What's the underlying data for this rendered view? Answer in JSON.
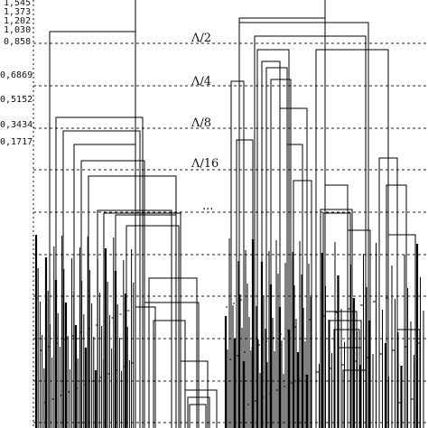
{
  "figure": {
    "y_ticks": [
      "1,545",
      "1,373",
      "1,202",
      "1,030",
      "0,858",
      "0,6869",
      "0,5152",
      "0,3434",
      "0,1717"
    ],
    "level_labels": [
      "Λ/2",
      "Λ/4",
      "Λ/8",
      "Λ/16",
      "..."
    ]
  },
  "chart_data": {
    "type": "dendrogram",
    "y_ticks": [
      1.545,
      1.373,
      1.202,
      1.03,
      0.858,
      0.6869,
      0.5152,
      0.3434,
      0.1717
    ],
    "threshold_levels": [
      {
        "label": "Λ/2"
      },
      {
        "label": "Λ/4"
      },
      {
        "label": "Λ/8"
      },
      {
        "label": "Λ/16"
      },
      {
        "label": "..."
      }
    ],
    "grid": "dashed horizontal threshold lines"
  }
}
